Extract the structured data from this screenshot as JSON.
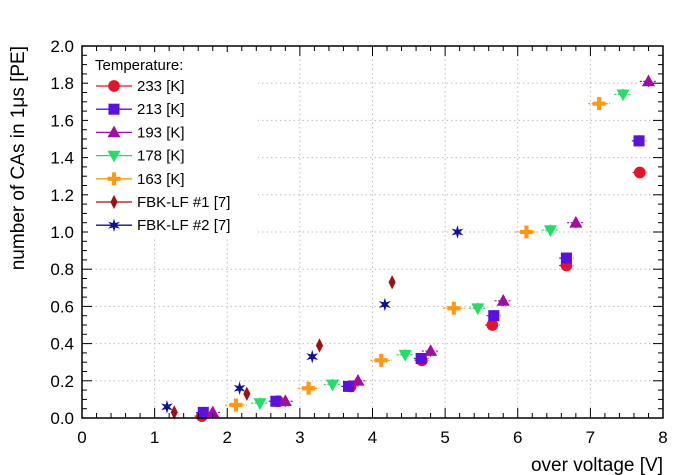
{
  "chart_data": {
    "type": "scatter",
    "title": "",
    "xlabel": "over voltage [V]",
    "ylabel": "number of CAs in 1μs [PE]",
    "xlim": [
      0,
      8
    ],
    "ylim": [
      0,
      2.0
    ],
    "xticks": [
      0,
      1,
      2,
      3,
      4,
      5,
      6,
      7,
      8
    ],
    "yticks": [
      0.0,
      0.2,
      0.4,
      0.6,
      0.8,
      1.0,
      1.2,
      1.4,
      1.6,
      1.8,
      2.0
    ],
    "yticklabels": [
      "0.0",
      "0.2",
      "0.4",
      "0.6",
      "0.8",
      "1.0",
      "1.2",
      "1.4",
      "1.6",
      "1.8",
      "2.0"
    ],
    "grid": true,
    "legend_title": "Temperature:",
    "legend_position": "top-left",
    "series": [
      {
        "name": "233 [K]",
        "color": "#e8132a",
        "marker": "circle",
        "points": [
          [
            1.65,
            0.01
          ],
          [
            2.7,
            0.09
          ],
          [
            3.7,
            0.17
          ],
          [
            4.68,
            0.31
          ],
          [
            5.65,
            0.5
          ],
          [
            6.67,
            0.82
          ],
          [
            7.68,
            1.32
          ]
        ],
        "xerr": 0.1,
        "yerr": 0.02
      },
      {
        "name": "213 [K]",
        "color": "#5a10e0",
        "marker": "square",
        "points": [
          [
            1.67,
            0.03
          ],
          [
            2.67,
            0.09
          ],
          [
            3.67,
            0.17
          ],
          [
            4.67,
            0.32
          ],
          [
            5.67,
            0.55
          ],
          [
            6.67,
            0.86
          ],
          [
            7.67,
            1.49
          ]
        ],
        "xerr": 0.1,
        "yerr": 0.03
      },
      {
        "name": "193 [K]",
        "color": "#a30ca3",
        "marker": "triangle-up",
        "points": [
          [
            1.8,
            0.03
          ],
          [
            2.8,
            0.09
          ],
          [
            3.8,
            0.2
          ],
          [
            4.8,
            0.36
          ],
          [
            5.8,
            0.63
          ],
          [
            6.8,
            1.05
          ],
          [
            7.8,
            1.81
          ]
        ],
        "xerr": 0.12,
        "yerr": 0.03
      },
      {
        "name": "178 [K]",
        "color": "#22dd66",
        "marker": "triangle-down",
        "points": [
          [
            2.45,
            0.08
          ],
          [
            3.45,
            0.18
          ],
          [
            4.45,
            0.34
          ],
          [
            5.45,
            0.59
          ],
          [
            6.45,
            1.01
          ],
          [
            7.45,
            1.74
          ]
        ],
        "xerr": 0.12,
        "yerr": 0.03
      },
      {
        "name": "163 [K]",
        "color": "#ff9a10",
        "marker": "cross",
        "points": [
          [
            2.12,
            0.07
          ],
          [
            3.12,
            0.16
          ],
          [
            4.12,
            0.31
          ],
          [
            5.12,
            0.59
          ],
          [
            6.12,
            1.0
          ],
          [
            7.12,
            1.69
          ]
        ],
        "xerr": 0.15,
        "yerr": 0.03
      },
      {
        "name": "FBK-LF #1 [7]",
        "color": "#a01010",
        "marker": "diamond",
        "points": [
          [
            1.27,
            0.03
          ],
          [
            2.27,
            0.13
          ],
          [
            3.27,
            0.39
          ],
          [
            4.27,
            0.73
          ]
        ],
        "xerr": 0,
        "yerr": 0
      },
      {
        "name": "FBK-LF #2 [7]",
        "color": "#1010a0",
        "marker": "star",
        "points": [
          [
            1.17,
            0.06
          ],
          [
            2.17,
            0.16
          ],
          [
            3.17,
            0.33
          ],
          [
            4.17,
            0.61
          ],
          [
            5.17,
            1.0
          ]
        ],
        "xerr": 0,
        "yerr": 0
      }
    ]
  }
}
